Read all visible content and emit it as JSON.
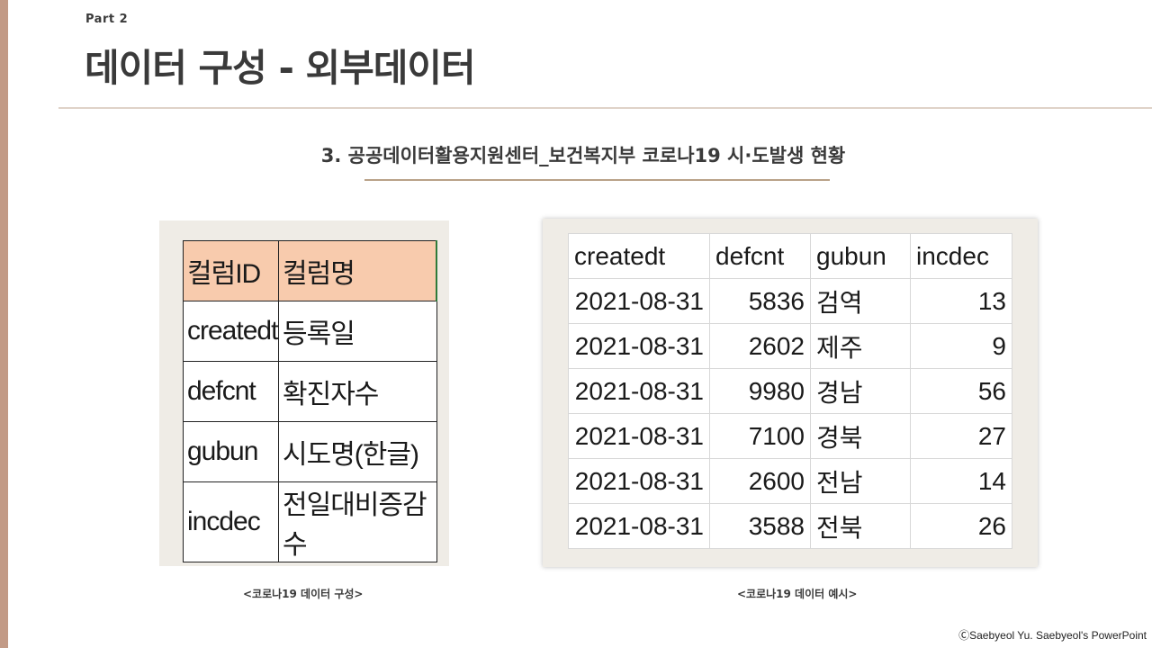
{
  "part_label": "Part 2",
  "title": "데이터 구성 - 외부데이터",
  "subtitle": "3.  공공데이터활용지원센터_보건복지부 코로나19 시·도발생 현황",
  "column_table": {
    "headers": [
      "컬럼ID",
      "컬럼명"
    ],
    "rows": [
      [
        "createdt",
        "등록일"
      ],
      [
        "defcnt",
        "확진자수"
      ],
      [
        "gubun",
        "시도명(한글)"
      ],
      [
        "incdec",
        "전일대비증감수"
      ]
    ]
  },
  "example_table": {
    "headers": [
      "createdt",
      "defcnt",
      "gubun",
      "incdec"
    ],
    "rows": [
      [
        "2021-08-31",
        "5836",
        "검역",
        "13"
      ],
      [
        "2021-08-31",
        "2602",
        "제주",
        "9"
      ],
      [
        "2021-08-31",
        "9980",
        "경남",
        "56"
      ],
      [
        "2021-08-31",
        "7100",
        "경북",
        "27"
      ],
      [
        "2021-08-31",
        "2600",
        "전남",
        "14"
      ],
      [
        "2021-08-31",
        "3588",
        "전북",
        "26"
      ]
    ]
  },
  "caption_left": "<코로나19 데이터 구성>",
  "caption_right": "<코로나19 데이터 예시>",
  "copyright": "ⒸSaebyeol Yu. Saebyeol's PowerPoint",
  "colors": {
    "accent": "#c29a86",
    "header_fill": "#f8cbad",
    "panel_bg": "#efece6",
    "subtitle_rule": "#b9a288"
  }
}
